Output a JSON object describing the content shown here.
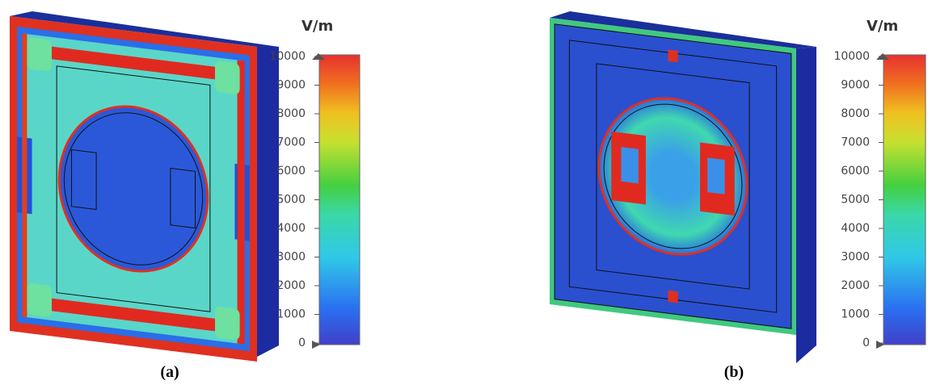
{
  "panels": [
    {
      "unit": "V/m",
      "ticks": [
        0,
        1000,
        2000,
        3000,
        4000,
        5000,
        6000,
        7000,
        8000,
        9000,
        10000
      ],
      "caption": "(a)"
    },
    {
      "unit": "V/m",
      "ticks": [
        0,
        1000,
        2000,
        3000,
        4000,
        5000,
        6000,
        7000,
        8000,
        9000,
        10000
      ],
      "caption": "(b)"
    }
  ]
}
